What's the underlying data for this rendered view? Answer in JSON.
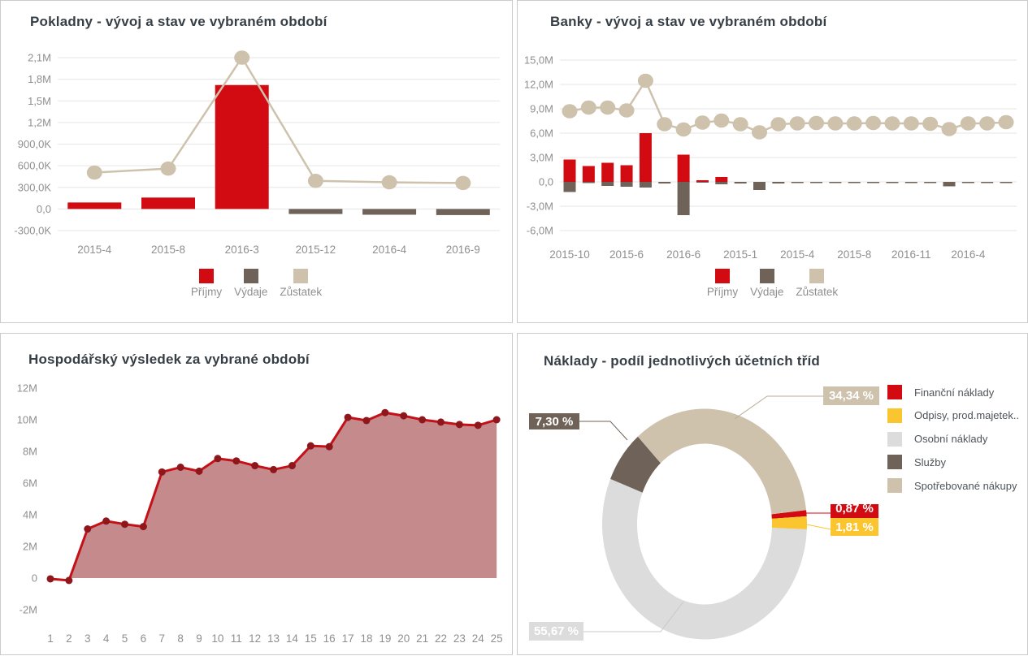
{
  "colors": {
    "red": "#d20a11",
    "dark_brown": "#6f6359",
    "tan": "#cec2ad",
    "yellow": "#fbc530",
    "light_gray": "#dcdcdc",
    "grid": "#e6e6e6",
    "axis_text": "#8f8f8f",
    "title_text": "#373f46",
    "area_fill": "#c58b8c",
    "area_line": "#c41017",
    "area_marker": "#8f161b",
    "leader_tan": "#b9ab97",
    "leader_gray": "#c9c9c9"
  },
  "chart_data": [
    {
      "id": "pokladny",
      "type": "combo-bar-line",
      "title": "Pokladny - vývoj a stav ve vybraném období",
      "categories": [
        "2015-4",
        "2015-8",
        "2016-3",
        "2015-12",
        "2016-4",
        "2016-9"
      ],
      "x_tick_labels": [
        "2015-4",
        "2015-8",
        "2016-3",
        "2015-12",
        "2016-4",
        "2016-9"
      ],
      "y_tick_labels": [
        "2,1M",
        "1,8M",
        "1,5M",
        "1,2M",
        "900,0K",
        "600,0K",
        "300,0K",
        "0,0",
        "-300,0K"
      ],
      "y_max": 2100000,
      "y_min": -300000,
      "y_step": 300000,
      "grid": true,
      "series": [
        {
          "name": "Příjmy",
          "type": "bar",
          "color": "#d20a11",
          "values": [
            90000,
            158000,
            1720000,
            0,
            0,
            0
          ]
        },
        {
          "name": "Výdaje",
          "type": "bar",
          "color": "#6f6359",
          "values": [
            0,
            0,
            0,
            -70000,
            -80000,
            -85000
          ]
        },
        {
          "name": "Zůstatek",
          "type": "line",
          "color": "#cec2ad",
          "values": [
            505000,
            560000,
            2100000,
            390000,
            370000,
            360000
          ]
        }
      ],
      "legend": [
        "Příjmy",
        "Výdaje",
        "Zůstatek"
      ]
    },
    {
      "id": "banky",
      "type": "combo-bar-line",
      "title": "Banky - vývoj a stav ve vybraném období",
      "x_tick_labels": [
        "2015-10",
        "2015-6",
        "2016-6",
        "2015-1",
        "2015-4",
        "2015-8",
        "2016-11",
        "2016-4"
      ],
      "y_tick_labels": [
        "15,0M",
        "12,0M",
        "9,0M",
        "6,0M",
        "3,0M",
        "0,0",
        "-3,0M",
        "-6,0M"
      ],
      "y_max": 15000000,
      "y_min": -6000000,
      "y_step": 3000000,
      "grid": true,
      "series": [
        {
          "name": "Příjmy",
          "type": "bar",
          "color": "#d20a11",
          "values": [
            2750000,
            1950000,
            2350000,
            2050000,
            6000000,
            0,
            3350000,
            200000,
            600000,
            0,
            0,
            0,
            0,
            0,
            0,
            0,
            0,
            0,
            0,
            0,
            0,
            0,
            0,
            0
          ]
        },
        {
          "name": "Výdaje",
          "type": "bar",
          "color": "#6f6359",
          "values": [
            -1250000,
            -150000,
            -500000,
            -600000,
            -700000,
            -200000,
            -4100000,
            -100000,
            -300000,
            -200000,
            -1000000,
            -200000,
            -150000,
            -150000,
            -150000,
            -150000,
            -150000,
            -150000,
            -150000,
            -150000,
            -550000,
            -150000,
            -150000,
            -150000
          ]
        },
        {
          "name": "Zůstatek",
          "type": "line",
          "color": "#cec2ad",
          "values": [
            8700000,
            9150000,
            9150000,
            8800000,
            12450000,
            7100000,
            6450000,
            7300000,
            7550000,
            7100000,
            6100000,
            7100000,
            7200000,
            7250000,
            7200000,
            7200000,
            7250000,
            7200000,
            7200000,
            7150000,
            6500000,
            7200000,
            7200000,
            7350000
          ]
        }
      ],
      "legend": [
        "Příjmy",
        "Výdaje",
        "Zůstatek"
      ]
    },
    {
      "id": "hospodarsky-vysledek",
      "type": "area",
      "title": "Hospodářský výsledek za vybrané období",
      "x_tick_labels": [
        "1",
        "2",
        "3",
        "4",
        "5",
        "6",
        "7",
        "8",
        "9",
        "10",
        "11",
        "12",
        "13",
        "14",
        "15",
        "16",
        "17",
        "18",
        "19",
        "20",
        "21",
        "22",
        "23",
        "24",
        "25"
      ],
      "y_tick_labels": [
        "12M",
        "10M",
        "8M",
        "6M",
        "4M",
        "2M",
        "0",
        "-2M"
      ],
      "y_max": 12000000,
      "y_min": -2000000,
      "y_step": 2000000,
      "grid": false,
      "values": [
        -50000,
        -150000,
        3100000,
        3600000,
        3400000,
        3250000,
        6700000,
        7000000,
        6750000,
        7550000,
        7400000,
        7100000,
        6850000,
        7100000,
        8350000,
        8300000,
        10150000,
        9950000,
        10450000,
        10250000,
        10000000,
        9850000,
        9700000,
        9650000,
        10000000
      ]
    },
    {
      "id": "naklady",
      "type": "donut",
      "title": "Náklady - podíl jednotlivých účetních tříd",
      "slices": [
        {
          "label": "Finanční náklady",
          "value_pct": 0.87,
          "display": "0,87 %",
          "color": "#d20a11"
        },
        {
          "label": "Odpisy, prod.majetek..",
          "value_pct": 1.81,
          "display": "1,81 %",
          "color": "#fbc530"
        },
        {
          "label": "Osobní náklady",
          "value_pct": 55.67,
          "display": "55,67 %",
          "color": "#dcdcdc"
        },
        {
          "label": "Služby",
          "value_pct": 7.3,
          "display": "7,30 %",
          "color": "#6f6359"
        },
        {
          "label": "Spotřebované nákupy",
          "value_pct": 34.34,
          "display": "34,34 %",
          "color": "#cec2ad"
        }
      ],
      "legend": [
        "Finanční náklady",
        "Odpisy, prod.majetek..",
        "Osobní náklady",
        "Služby",
        "Spotřebované nákupy"
      ]
    }
  ]
}
